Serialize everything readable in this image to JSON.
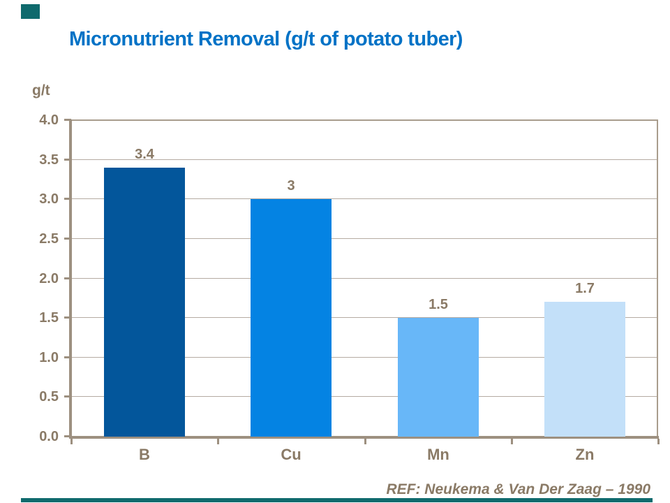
{
  "slide": {
    "title": "Micronutrient Removal (g/t of potato tuber)",
    "title_color": "#0072C6",
    "accent_color": "#0F6A6D",
    "source": "REF: Neukema & Van Der Zaag – 1990"
  },
  "chart_data": {
    "type": "bar",
    "title": "Micronutrient Removal (g/t of potato tuber)",
    "categories": [
      "B",
      "Cu",
      "Mn",
      "Zn"
    ],
    "values": [
      3.4,
      3,
      1.5,
      1.7
    ],
    "value_labels": [
      "3.4",
      "3",
      "1.5",
      "1.7"
    ],
    "bar_colors": [
      "#03569B",
      "#0483E3",
      "#68B7F8",
      "#C3E0F9"
    ],
    "xlabel": "",
    "ylabel": "g/t",
    "ylim": [
      0,
      4
    ],
    "ytick_step": 0.5,
    "ytick_labels": [
      "4.0",
      "3.5",
      "3.0",
      "2.5",
      "2.0",
      "1.5",
      "1.0",
      "0.5",
      "0.0"
    ],
    "grid": true,
    "legend": "none",
    "text_color": "#8A7A66",
    "grid_color": "#B5ABA2",
    "axis_color": "#9D9080",
    "border_color": "#A99D8D",
    "source": "REF: Neukema & Van Der Zaag – 1990"
  }
}
